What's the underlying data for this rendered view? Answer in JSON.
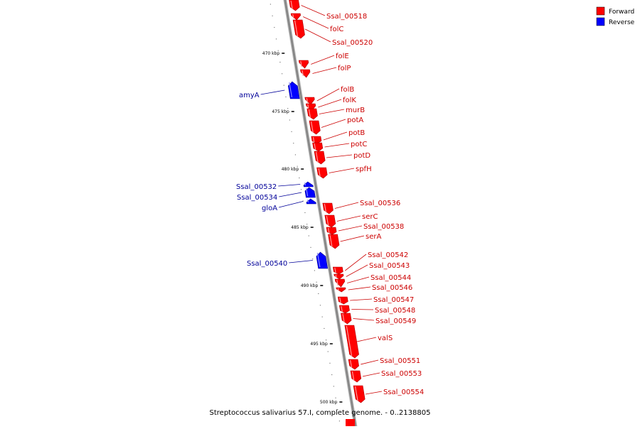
{
  "legend": {
    "forward_label": "Forward",
    "reverse_label": "Reverse",
    "forward_color": "#ff0000",
    "reverse_color": "#0000ff"
  },
  "colors": {
    "backbone": "#888888",
    "forward_label": "#cc0000",
    "reverse_label": "#000099"
  },
  "caption": "Streptococcus salivarius 57.I, complete genome. - 0..2138805",
  "scale_ticks": [
    "470 kbp",
    "475 kbp",
    "480 kbp",
    "485 kbp",
    "490 kbp",
    "495 kbp",
    "500 kbp"
  ],
  "genes": [
    {
      "name": "Ssal_00518",
      "strand": "forward"
    },
    {
      "name": "folC",
      "strand": "forward"
    },
    {
      "name": "Ssal_00520",
      "strand": "forward"
    },
    {
      "name": "folE",
      "strand": "forward"
    },
    {
      "name": "folP",
      "strand": "forward"
    },
    {
      "name": "amyA",
      "strand": "reverse"
    },
    {
      "name": "folB",
      "strand": "forward"
    },
    {
      "name": "folK",
      "strand": "forward"
    },
    {
      "name": "murB",
      "strand": "forward"
    },
    {
      "name": "potA",
      "strand": "forward"
    },
    {
      "name": "potB",
      "strand": "forward"
    },
    {
      "name": "potC",
      "strand": "forward"
    },
    {
      "name": "potD",
      "strand": "forward"
    },
    {
      "name": "spfH",
      "strand": "forward"
    },
    {
      "name": "Ssal_00532",
      "strand": "reverse"
    },
    {
      "name": "Ssal_00534",
      "strand": "reverse"
    },
    {
      "name": "gloA",
      "strand": "reverse"
    },
    {
      "name": "Ssal_00536",
      "strand": "forward"
    },
    {
      "name": "serC",
      "strand": "forward"
    },
    {
      "name": "Ssal_00538",
      "strand": "forward"
    },
    {
      "name": "serA",
      "strand": "forward"
    },
    {
      "name": "Ssal_00540",
      "strand": "reverse"
    },
    {
      "name": "Ssal_00542",
      "strand": "forward"
    },
    {
      "name": "Ssal_00543",
      "strand": "forward"
    },
    {
      "name": "Ssal_00544",
      "strand": "forward"
    },
    {
      "name": "Ssal_00546",
      "strand": "forward"
    },
    {
      "name": "Ssal_00547",
      "strand": "forward"
    },
    {
      "name": "Ssal_00548",
      "strand": "forward"
    },
    {
      "name": "Ssal_00549",
      "strand": "forward"
    },
    {
      "name": "valS",
      "strand": "forward"
    },
    {
      "name": "Ssal_00551",
      "strand": "forward"
    },
    {
      "name": "Ssal_00553",
      "strand": "forward"
    },
    {
      "name": "Ssal_00554",
      "strand": "forward"
    }
  ]
}
